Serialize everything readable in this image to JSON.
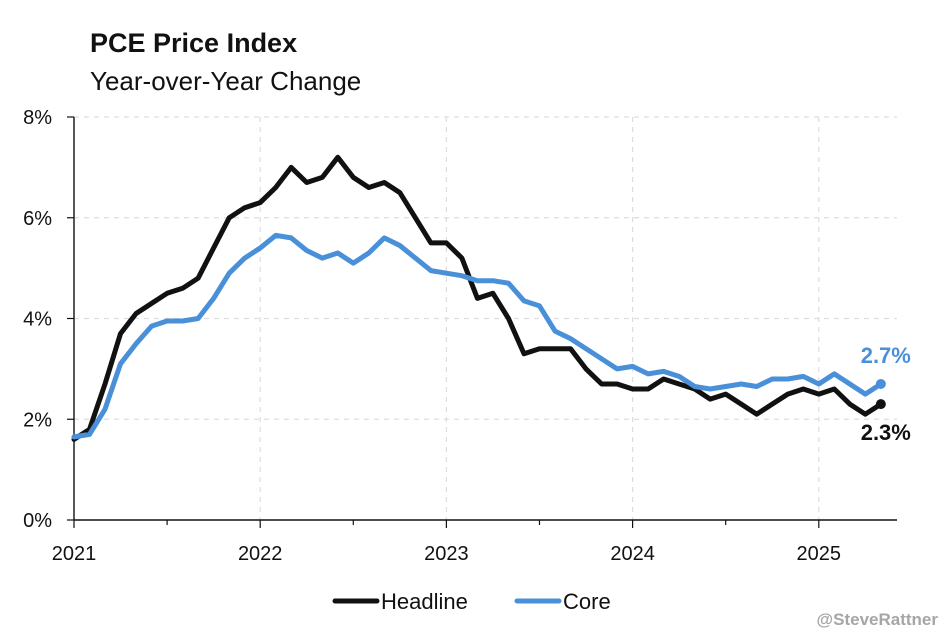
{
  "chart_data": {
    "type": "line",
    "title": "PCE Price Index",
    "subtitle": "Year-over-Year Change",
    "xlabel": "",
    "ylabel": "",
    "x_ticks": [
      "2021",
      "2022",
      "2023",
      "2024",
      "2025"
    ],
    "y_ticks": [
      "0%",
      "2%",
      "4%",
      "6%",
      "8%"
    ],
    "xlim": [
      2021.0,
      2025.42
    ],
    "ylim": [
      0,
      8
    ],
    "grid": true,
    "legend": "bottom",
    "x": [
      "2021-01",
      "2021-02",
      "2021-03",
      "2021-04",
      "2021-05",
      "2021-06",
      "2021-07",
      "2021-08",
      "2021-09",
      "2021-10",
      "2021-11",
      "2021-12",
      "2022-01",
      "2022-02",
      "2022-03",
      "2022-04",
      "2022-05",
      "2022-06",
      "2022-07",
      "2022-08",
      "2022-09",
      "2022-10",
      "2022-11",
      "2022-12",
      "2023-01",
      "2023-02",
      "2023-03",
      "2023-04",
      "2023-05",
      "2023-06",
      "2023-07",
      "2023-08",
      "2023-09",
      "2023-10",
      "2023-11",
      "2023-12",
      "2024-01",
      "2024-02",
      "2024-03",
      "2024-04",
      "2024-05",
      "2024-06",
      "2024-07",
      "2024-08",
      "2024-09",
      "2024-10",
      "2024-11",
      "2024-12",
      "2025-01",
      "2025-02",
      "2025-03",
      "2025-04",
      "2025-05"
    ],
    "series": [
      {
        "name": "Headline",
        "color": "#111111",
        "end_label": "2.3%",
        "values": [
          1.6,
          1.8,
          2.7,
          3.7,
          4.1,
          4.3,
          4.5,
          4.6,
          4.8,
          5.4,
          6.0,
          6.2,
          6.3,
          6.6,
          7.0,
          6.7,
          6.8,
          7.2,
          6.8,
          6.6,
          6.7,
          6.5,
          6.0,
          5.5,
          5.5,
          5.2,
          4.4,
          4.5,
          4.0,
          3.3,
          3.4,
          3.4,
          3.4,
          3.0,
          2.7,
          2.7,
          2.6,
          2.6,
          2.8,
          2.7,
          2.6,
          2.4,
          2.5,
          2.3,
          2.1,
          2.3,
          2.5,
          2.6,
          2.5,
          2.6,
          2.3,
          2.1,
          2.3
        ]
      },
      {
        "name": "Core",
        "color": "#4a90d9",
        "end_label": "2.7%",
        "values": [
          1.65,
          1.7,
          2.2,
          3.1,
          3.5,
          3.85,
          3.95,
          3.95,
          4.0,
          4.4,
          4.9,
          5.2,
          5.4,
          5.65,
          5.6,
          5.35,
          5.2,
          5.3,
          5.1,
          5.3,
          5.6,
          5.45,
          5.2,
          4.95,
          4.9,
          4.85,
          4.75,
          4.75,
          4.7,
          4.35,
          4.25,
          3.75,
          3.6,
          3.4,
          3.2,
          3.0,
          3.05,
          2.9,
          2.95,
          2.85,
          2.65,
          2.6,
          2.65,
          2.7,
          2.65,
          2.8,
          2.8,
          2.85,
          2.7,
          2.9,
          2.7,
          2.5,
          2.7
        ]
      }
    ]
  },
  "credit": "@SteveRattner"
}
